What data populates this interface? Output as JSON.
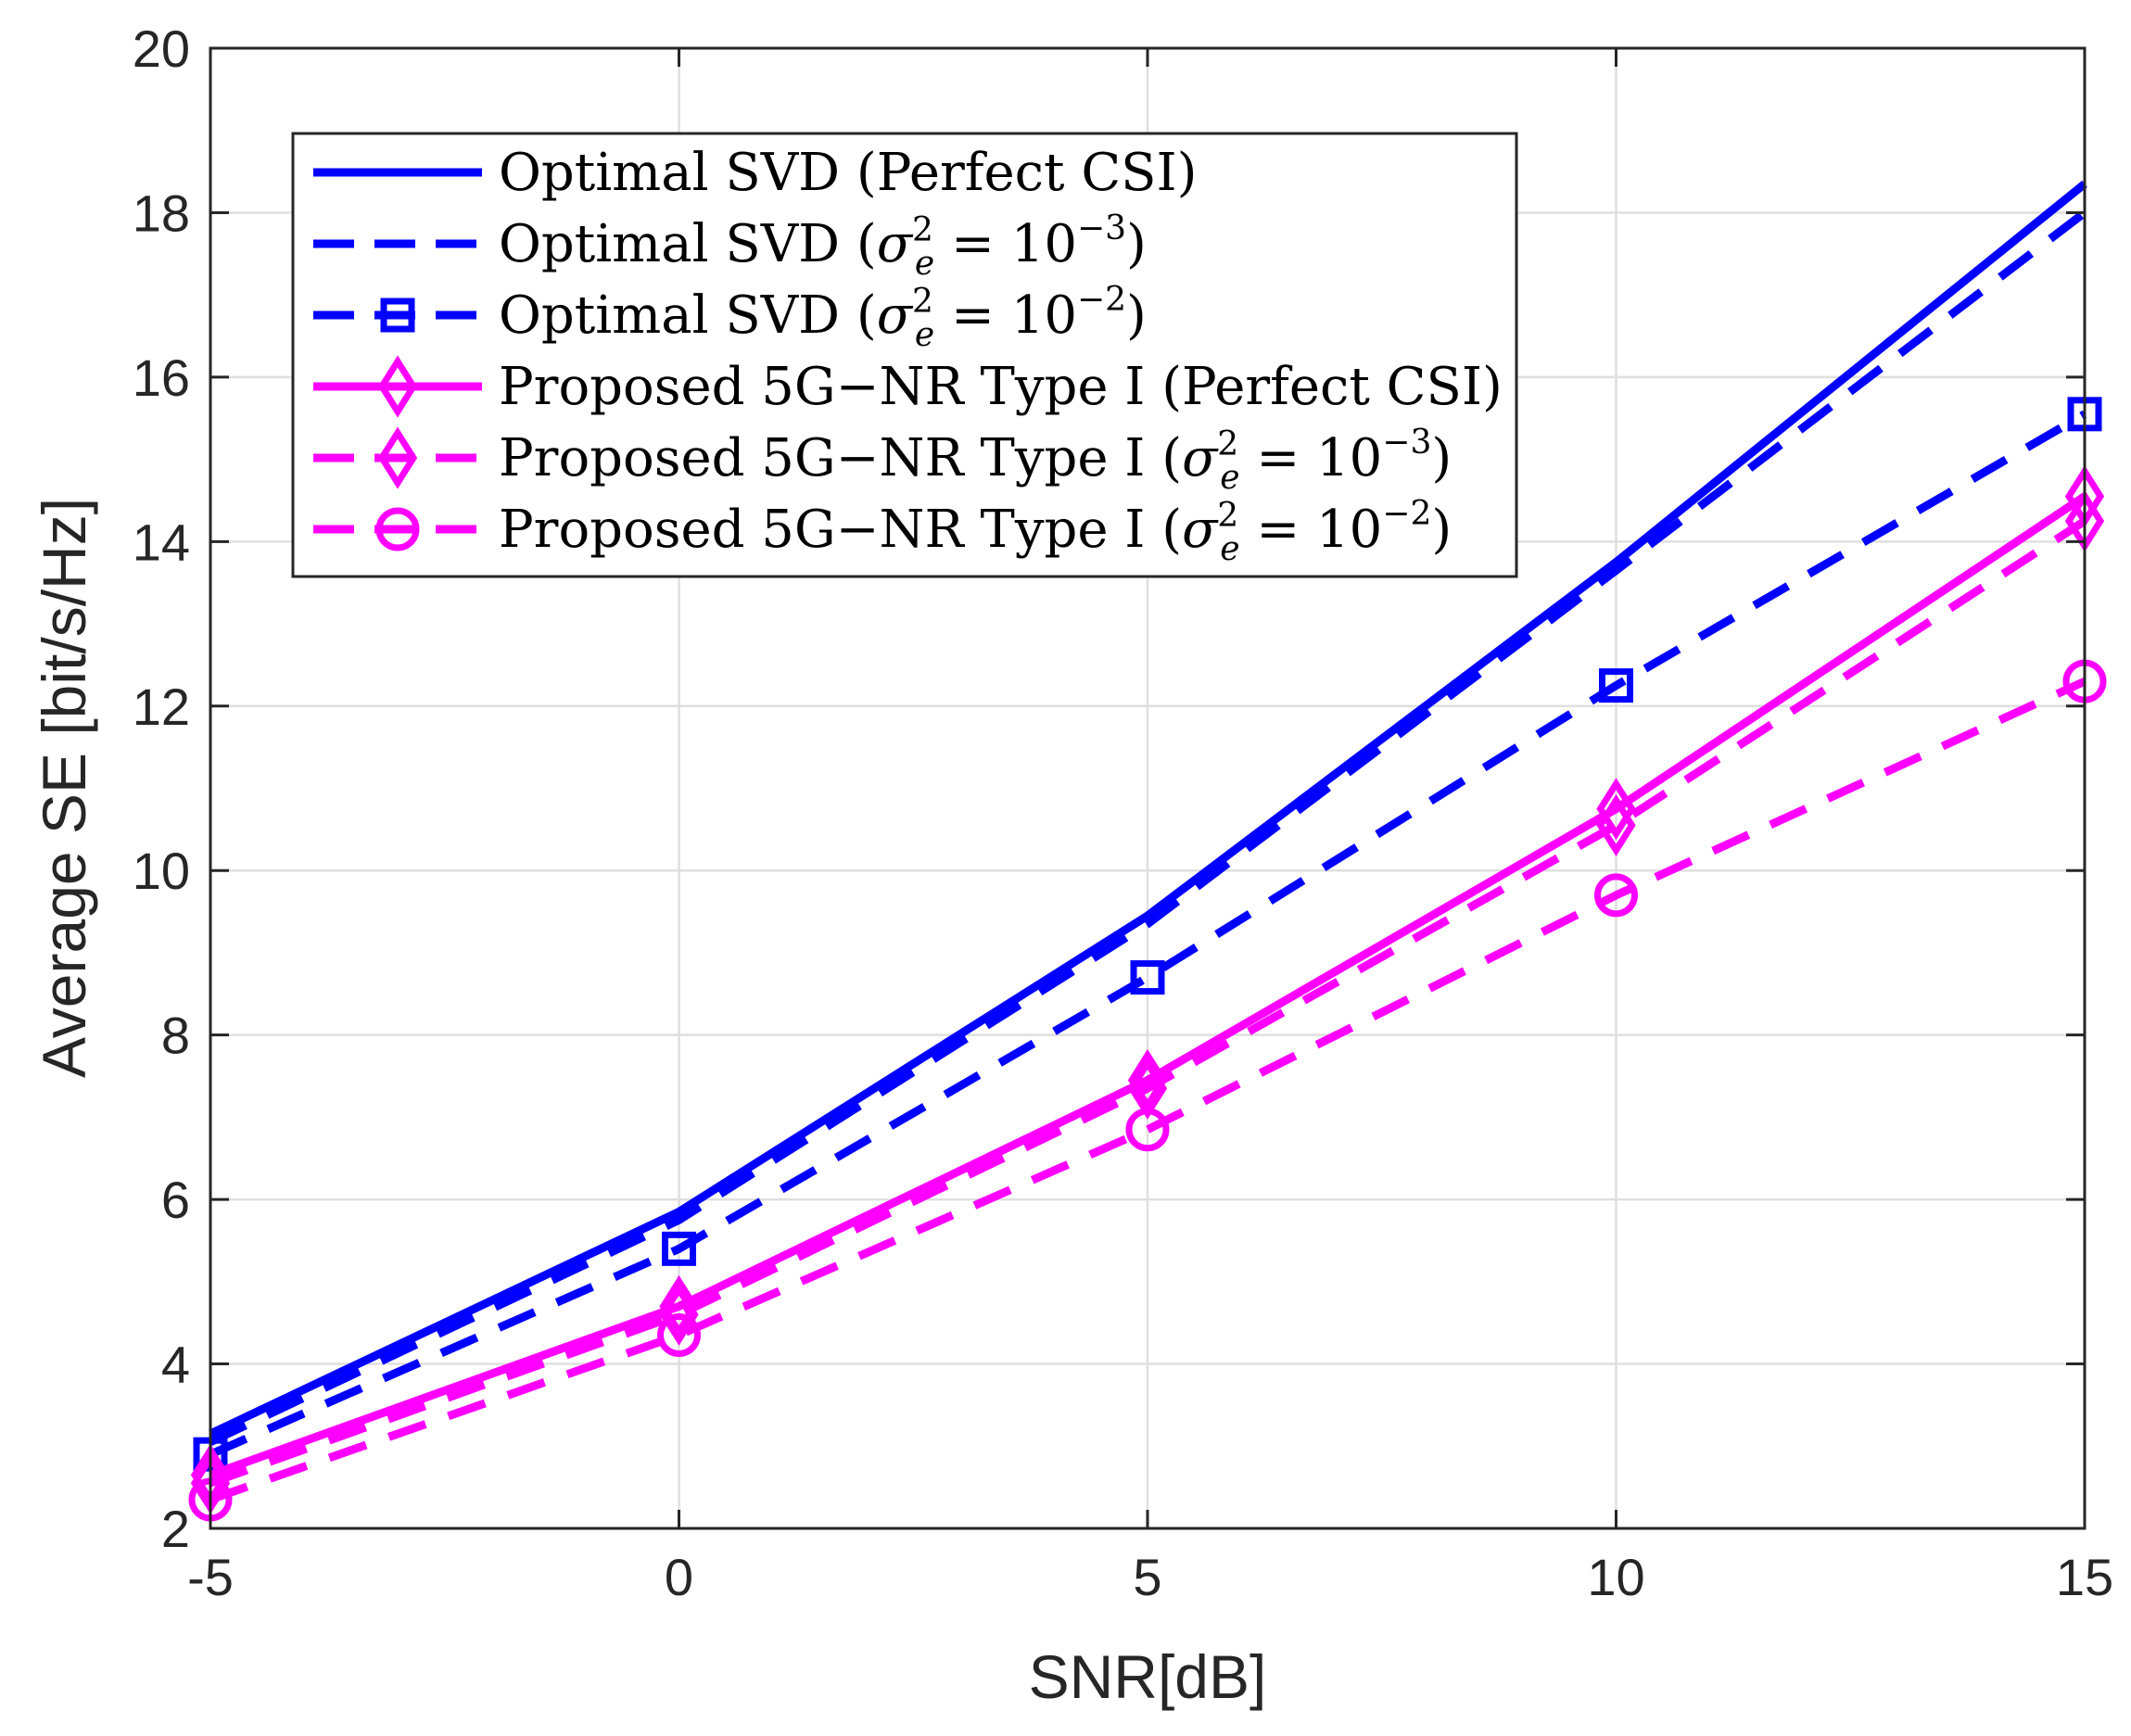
{
  "chart_data": {
    "type": "line",
    "title": "",
    "xlabel": "SNR[dB]",
    "ylabel": "Average SE [bit/s/Hz]",
    "x": [
      -5,
      0,
      5,
      10,
      15
    ],
    "xlim": [
      -5,
      15
    ],
    "ylim": [
      2,
      20
    ],
    "xticks": [
      -5,
      0,
      5,
      10,
      15
    ],
    "xtick_labels": [
      "-5",
      "0",
      "5",
      "10",
      "15"
    ],
    "yticks": [
      2,
      4,
      6,
      8,
      10,
      12,
      14,
      16,
      18,
      20
    ],
    "ytick_labels": [
      "2",
      "4",
      "6",
      "8",
      "10",
      "12",
      "14",
      "16",
      "18",
      "20"
    ],
    "grid": true,
    "legend_position": "top-left",
    "series": [
      {
        "name": "Optimal SVD (Perfect CSI)",
        "legend": {
          "pre": "Optimal SVD (Perfect CSI)",
          "sym": "",
          "post": ""
        },
        "color": "#0000ff",
        "dash": "solid",
        "marker": "none",
        "values": [
          3.15,
          5.85,
          9.45,
          13.75,
          18.35
        ]
      },
      {
        "name": "Optimal SVD (σe² = 10⁻³)",
        "legend": {
          "pre": "Optimal SVD (",
          "sym": "σ",
          "sup": "2",
          "sub": "e",
          "mid": " = 10",
          "exp": "−3",
          "post": ")"
        },
        "color": "#0000ff",
        "dash": "dashed",
        "marker": "none",
        "values": [
          3.05,
          5.75,
          9.35,
          13.65,
          18.0
        ]
      },
      {
        "name": "Optimal SVD (σe² = 10⁻²)",
        "legend": {
          "pre": "Optimal SVD (",
          "sym": "σ",
          "sup": "2",
          "sub": "e",
          "mid": " = 10",
          "exp": "−2",
          "post": ")"
        },
        "color": "#0000ff",
        "dash": "dashed",
        "marker": "square",
        "values": [
          2.9,
          5.4,
          8.7,
          12.25,
          15.55
        ]
      },
      {
        "name": "Proposed 5G−NR Type I (Perfect CSI)",
        "legend": {
          "pre": "Proposed 5G−NR Type I (Perfect CSI)",
          "sym": "",
          "post": ""
        },
        "color": "#ff00ff",
        "dash": "solid",
        "marker": "diamond",
        "values": [
          2.65,
          4.7,
          7.45,
          10.75,
          14.55
        ]
      },
      {
        "name": "Proposed 5G−NR Type I (σe² = 10⁻³)",
        "legend": {
          "pre": "Proposed 5G−NR Type I (",
          "sym": "σ",
          "sup": "2",
          "sub": "e",
          "mid": " = 10",
          "exp": "−3",
          "post": ")"
        },
        "color": "#ff00ff",
        "dash": "dashed",
        "marker": "diamond",
        "values": [
          2.55,
          4.6,
          7.35,
          10.55,
          14.25
        ]
      },
      {
        "name": "Proposed 5G−NR Type I (σe² = 10⁻²)",
        "legend": {
          "pre": "Proposed 5G−NR Type I (",
          "sym": "σ",
          "sup": "2",
          "sub": "e",
          "mid": " = 10",
          "exp": "−2",
          "post": ")"
        },
        "color": "#ff00ff",
        "dash": "dashed",
        "marker": "circle",
        "values": [
          2.35,
          4.35,
          6.85,
          9.7,
          12.3
        ]
      }
    ]
  }
}
